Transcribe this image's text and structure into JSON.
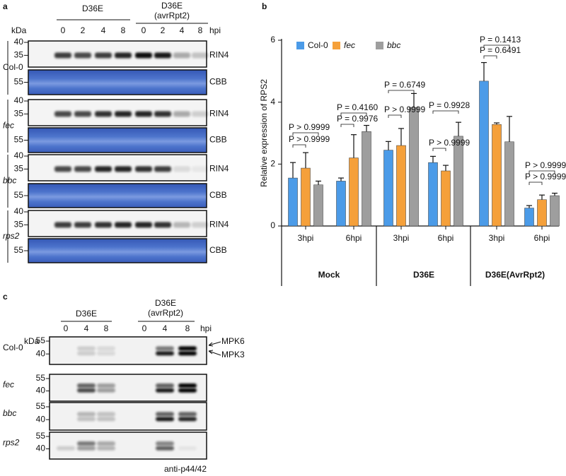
{
  "panel_a": {
    "letter": "a",
    "kda": "kDa",
    "treatments": [
      [
        "D36E"
      ],
      [
        "D36E",
        "(avrRpt2)"
      ]
    ],
    "lanes": [
      "0",
      "2",
      "4",
      "8",
      "0",
      "2",
      "4",
      "8"
    ],
    "hpi": "hpi",
    "genotypes": [
      "Col-0",
      "fec",
      "bbc",
      "rps2"
    ],
    "markers_top": [
      "40",
      "35"
    ],
    "marker_cbb": "55",
    "blot_labels": [
      "RIN4",
      "CBB"
    ]
  },
  "panel_b": {
    "letter": "b"
  },
  "chart_data": {
    "type": "bar",
    "y_label": "Relative expression of RPS2",
    "categories": [
      "3hpi",
      "6hpi",
      "3hpi",
      "6hpi",
      "3hpi",
      "6hpi"
    ],
    "group_labels": [
      "Mock",
      "D36E",
      "D36E(AvrRpt2)"
    ],
    "series": [
      {
        "name": "Col-0",
        "color": "#4b9be8",
        "values": [
          1.55,
          1.45,
          2.45,
          2.05,
          4.68,
          0.58
        ],
        "errors": [
          0.5,
          0.1,
          0.28,
          0.2,
          0.6,
          0.08
        ]
      },
      {
        "name": "fec",
        "color": "#f5a03a",
        "values": [
          1.87,
          2.2,
          2.6,
          1.78,
          3.28,
          0.85
        ],
        "errors": [
          0.5,
          0.75,
          0.55,
          0.18,
          0.05,
          0.15
        ]
      },
      {
        "name": "bbc",
        "color": "#9e9e9e",
        "values": [
          1.33,
          3.05,
          3.83,
          2.9,
          2.72,
          0.98
        ],
        "errors": [
          0.12,
          0.2,
          0.45,
          0.45,
          0.82,
          0.08
        ]
      }
    ],
    "ylim": [
      0,
      6
    ],
    "yticks": [
      0,
      2,
      4,
      6
    ],
    "annotations": [
      "P > 0.9999",
      "P > 0.9999",
      "P = 0.9976",
      "P = 0.4160",
      "P > 0.9999",
      "P = 0.6749",
      "P > 0.9999",
      "P = 0.9928",
      "P = 0.6491",
      "P = 0.1413",
      "P > 0.9999",
      "P > 0.9999"
    ]
  },
  "panel_c": {
    "letter": "c",
    "kda": "kDa",
    "treatments": [
      [
        "D36E"
      ],
      [
        "D36E",
        "(avrRpt2)"
      ]
    ],
    "lanes": [
      "0",
      "4",
      "8",
      "0",
      "4",
      "8"
    ],
    "hpi": "hpi",
    "genotypes": [
      "Col-0",
      "fec",
      "bbc",
      "rps2"
    ],
    "markers": [
      "55",
      "40"
    ],
    "arrows": [
      "MPK6",
      "MPK3"
    ],
    "antibody": "anti-p44/42"
  }
}
